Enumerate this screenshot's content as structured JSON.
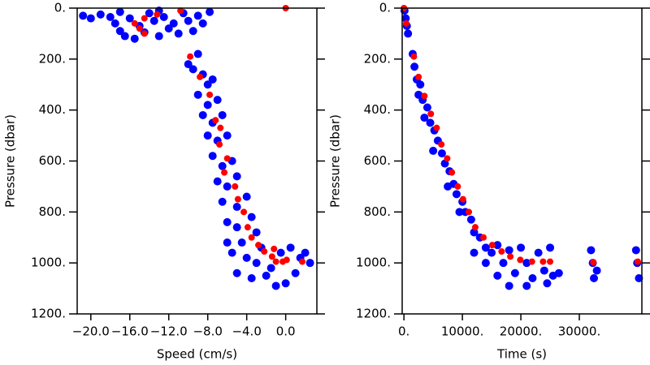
{
  "chart_data": [
    {
      "type": "scatter",
      "xlabel": "Speed (cm/s)",
      "ylabel": "Pressure (dbar)",
      "xlim": [
        -21.4,
        3.2
      ],
      "ylim": [
        0,
        1200
      ],
      "y_inverted": true,
      "xticks": [
        {
          "value": -20,
          "label": "−20.0"
        },
        {
          "value": -16,
          "label": "−16.0"
        },
        {
          "value": -12,
          "label": "−12.0"
        },
        {
          "value": -8,
          "label": "−8.0"
        },
        {
          "value": -4,
          "label": "−4.0"
        },
        {
          "value": 0,
          "label": "0.0"
        }
      ],
      "yticks": [
        {
          "value": 0,
          "label": "0."
        },
        {
          "value": 200,
          "label": "200."
        },
        {
          "value": 400,
          "label": "400."
        },
        {
          "value": 600,
          "label": "600."
        },
        {
          "value": 800,
          "label": "800."
        },
        {
          "value": 1000,
          "label": "1000."
        },
        {
          "value": 1200,
          "label": "1200."
        }
      ],
      "series": [
        {
          "color": "#0000ff",
          "x": [
            -20.8,
            -20,
            -19,
            -18,
            -17.5,
            -17,
            -16.5,
            -16,
            -15.5,
            -15,
            -14.5,
            -14,
            -13.5,
            -13,
            -12.5,
            -12,
            -11.5,
            -11,
            -10.5,
            -10,
            -9.5,
            -9,
            -8.5,
            -7.8,
            -17,
            -13,
            -10,
            -9,
            -9.5,
            -8.5,
            -8,
            -7.5,
            -9,
            -8,
            -7,
            -8.5,
            -7.5,
            -6.5,
            -8,
            -7,
            -6,
            -7.5,
            -6.5,
            -5.5,
            -7,
            -6,
            -5,
            -6.5,
            -5,
            -4,
            -6,
            -5,
            -3.5,
            -6,
            -4.5,
            -3,
            -5.5,
            -4,
            -2.5,
            -3,
            -1.5,
            -0.5,
            0.5,
            1.5,
            2.5,
            -2,
            0,
            1,
            -1,
            2,
            -5,
            -3.5
          ],
          "values": [
            30,
            40,
            25,
            35,
            60,
            90,
            110,
            40,
            120,
            70,
            95,
            20,
            50,
            110,
            35,
            80,
            60,
            100,
            20,
            50,
            90,
            30,
            60,
            15,
            15,
            10,
            220,
            180,
            240,
            260,
            300,
            280,
            340,
            380,
            360,
            420,
            450,
            420,
            500,
            520,
            500,
            580,
            620,
            600,
            680,
            700,
            660,
            760,
            780,
            740,
            840,
            860,
            820,
            920,
            920,
            880,
            960,
            980,
            940,
            1000,
            1020,
            960,
            940,
            980,
            1000,
            1050,
            1080,
            1040,
            1090,
            960,
            1040,
            1060
          ]
        },
        {
          "color": "#ff0000",
          "x": [
            0,
            -10.8,
            -13.2,
            -15.5,
            -15,
            -14.5,
            -14.5,
            -9.8,
            -8.8,
            -7.8,
            -7.2,
            -6.7,
            -6.8,
            -6,
            -6.3,
            -5.2,
            -4.9,
            -4.3,
            -3.9,
            -3.5,
            -2.8,
            -2.2,
            -1.4,
            -1,
            -0.3,
            0.1,
            1.7,
            -1.2
          ],
          "values": [
            0,
            10,
            25,
            60,
            80,
            100,
            40,
            190,
            270,
            340,
            440,
            470,
            535,
            590,
            645,
            700,
            750,
            800,
            860,
            900,
            930,
            955,
            975,
            995,
            995,
            988,
            995,
            945
          ]
        }
      ]
    },
    {
      "type": "scatter",
      "xlabel": "Time (s)",
      "ylabel": "Pressure (dbar)",
      "xlim": [
        -300,
        40700
      ],
      "ylim": [
        0,
        1200
      ],
      "y_inverted": true,
      "xticks": [
        {
          "value": 0,
          "label": "0."
        },
        {
          "value": 10000,
          "label": "10000."
        },
        {
          "value": 20000,
          "label": "20000."
        },
        {
          "value": 30000,
          "label": "30000."
        }
      ],
      "yticks": [
        {
          "value": 0,
          "label": "0."
        },
        {
          "value": 200,
          "label": "200."
        },
        {
          "value": 400,
          "label": "400."
        },
        {
          "value": 600,
          "label": "600."
        },
        {
          "value": 800,
          "label": "800."
        },
        {
          "value": 1000,
          "label": "1000."
        },
        {
          "value": 1200,
          "label": "1200."
        }
      ],
      "series": [
        {
          "color": "#0000ff",
          "x": [
            100,
            300,
            500,
            700,
            1500,
            1800,
            2200,
            2800,
            3200,
            4000,
            4500,
            5200,
            5800,
            6500,
            7000,
            7800,
            8500,
            9000,
            10000,
            10500,
            11500,
            12000,
            13000,
            14000,
            15000,
            16000,
            17000,
            18000,
            19000,
            20000,
            21000,
            22000,
            23000,
            24000,
            25000,
            25500,
            24500,
            18000,
            21000,
            16000,
            32000,
            32300,
            32500,
            33000,
            39700,
            39900,
            40200,
            26500,
            14000,
            12000,
            9500,
            7500,
            5000,
            3500,
            2500
          ],
          "values": [
            10,
            40,
            70,
            100,
            180,
            230,
            280,
            300,
            360,
            390,
            450,
            480,
            520,
            570,
            610,
            640,
            690,
            730,
            760,
            800,
            830,
            880,
            900,
            940,
            960,
            930,
            1000,
            950,
            1040,
            940,
            1000,
            1060,
            960,
            1030,
            940,
            1050,
            1080,
            1090,
            1090,
            1050,
            950,
            1000,
            1060,
            1030,
            950,
            1000,
            1060,
            1040,
            1000,
            960,
            800,
            700,
            560,
            430,
            340
          ]
        },
        {
          "color": "#ff0000",
          "x": [
            0,
            400,
            1700,
            2500,
            3500,
            4600,
            5600,
            6400,
            7400,
            8200,
            9200,
            10100,
            11100,
            12200,
            13600,
            15100,
            16700,
            18200,
            19900,
            21900,
            23800,
            25000,
            32400,
            40000
          ],
          "values": [
            0,
            60,
            190,
            270,
            345,
            415,
            470,
            535,
            590,
            645,
            700,
            750,
            800,
            860,
            900,
            930,
            955,
            975,
            988,
            995,
            995,
            995,
            997,
            995
          ]
        }
      ]
    }
  ]
}
